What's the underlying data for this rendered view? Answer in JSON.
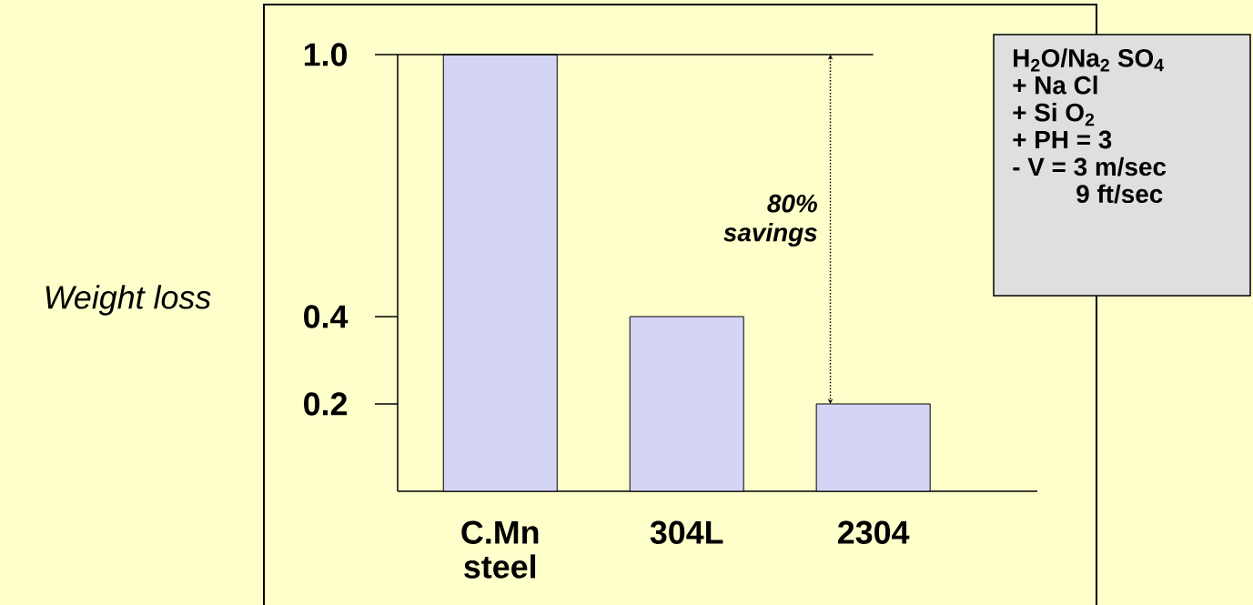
{
  "chart_data": {
    "type": "bar",
    "ylabel": "Weight loss",
    "categories": [
      "C.Mn steel",
      "304L",
      "2304"
    ],
    "values": [
      1.0,
      0.4,
      0.2
    ],
    "color": "#d4d4f4",
    "ylim": [
      0,
      1.0
    ],
    "yticks": [
      0.2,
      0.4,
      {
        "value": 1.0,
        "label": "1.0"
      }
    ],
    "ref_lines": [
      {
        "axis": "y",
        "value": 1.0
      }
    ],
    "annotations": [
      "80% savings",
      "H$_{2}$O/Na$_{2}$ SO$_{4}$",
      "+ Na Cl",
      "+ Si O$_{2}$",
      "+ PH = 3",
      "- V = 3 m/sec",
      "9 ft/sec"
    ]
  }
}
